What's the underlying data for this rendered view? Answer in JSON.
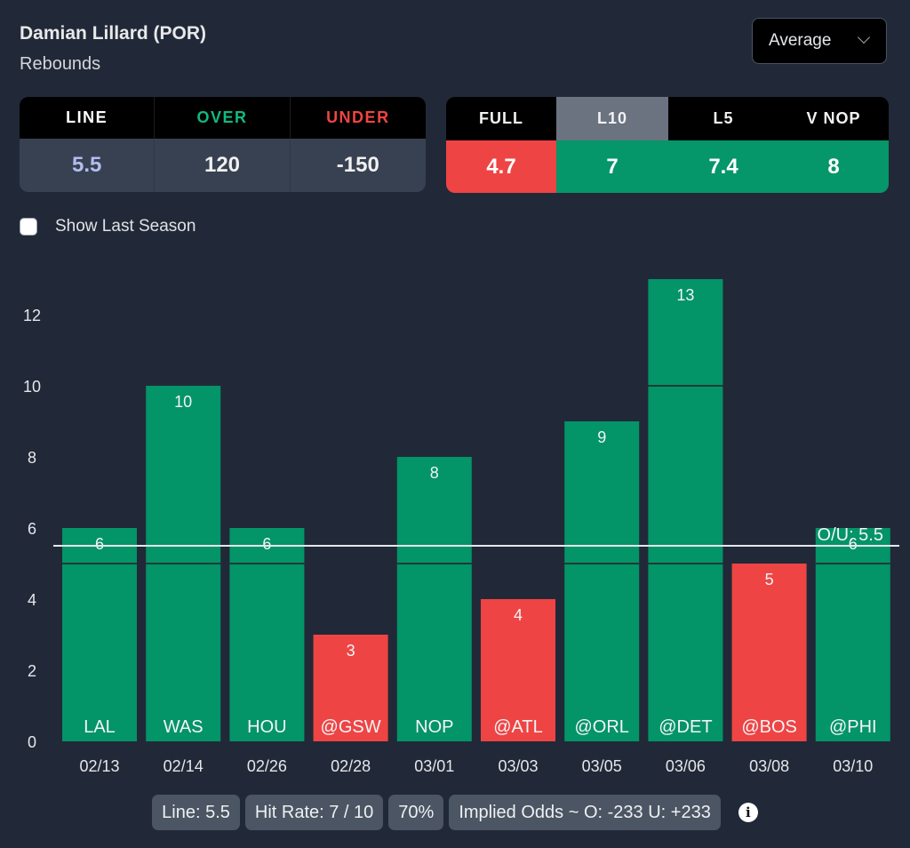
{
  "header": {
    "player": "Damian Lillard (POR)",
    "stat": "Rebounds"
  },
  "dropdown": {
    "selected": "Average",
    "icon": "chevron-down-icon"
  },
  "odds_table": {
    "headers": [
      {
        "label": "LINE",
        "color": "#ffffff"
      },
      {
        "label": "OVER",
        "color": "#10b981"
      },
      {
        "label": "UNDER",
        "color": "#ef4444"
      }
    ],
    "values": [
      {
        "value": "5.5",
        "color": "#b4bcf0"
      },
      {
        "value": "120",
        "color": "#f0f0f0"
      },
      {
        "value": "-150",
        "color": "#f0f0f0"
      }
    ]
  },
  "averages_table": {
    "columns": [
      {
        "label": "FULL",
        "value": "4.7",
        "color": "#ef4444",
        "selected": false
      },
      {
        "label": "L10",
        "value": "7",
        "color": "#059669",
        "selected": true
      },
      {
        "label": "L5",
        "value": "7.4",
        "color": "#059669",
        "selected": false
      },
      {
        "label": "V NOP",
        "value": "8",
        "color": "#059669",
        "selected": false
      }
    ]
  },
  "checkbox": {
    "label": "Show Last Season",
    "checked": false
  },
  "colors": {
    "over": "#039467",
    "under": "#ef4444",
    "background": "#212938"
  },
  "chart_data": {
    "type": "bar",
    "title": "",
    "xlabel": "",
    "ylabel": "",
    "categories": [
      "02/13",
      "02/14",
      "02/26",
      "02/28",
      "03/01",
      "03/03",
      "03/05",
      "03/06",
      "03/08",
      "03/10"
    ],
    "opponents": [
      "LAL",
      "WAS",
      "HOU",
      "@GSW",
      "NOP",
      "@ATL",
      "@ORL",
      "@DET",
      "@BOS",
      "@PHI"
    ],
    "values": [
      6,
      10,
      6,
      3,
      8,
      4,
      9,
      13,
      5,
      6
    ],
    "ylim": [
      0,
      13
    ],
    "yticks": [
      0,
      2,
      4,
      6,
      8,
      10,
      12
    ],
    "segment_breaks": [
      5,
      10
    ],
    "grid": false,
    "reference_line": {
      "value": 5.5,
      "label": "O/U: 5.5"
    }
  },
  "summary": {
    "line": "Line: 5.5",
    "hit_rate": "Hit Rate: 7 / 10",
    "percent": "70%",
    "implied_odds": "Implied Odds ~ O: -233 U: +233",
    "info_icon": "i"
  }
}
